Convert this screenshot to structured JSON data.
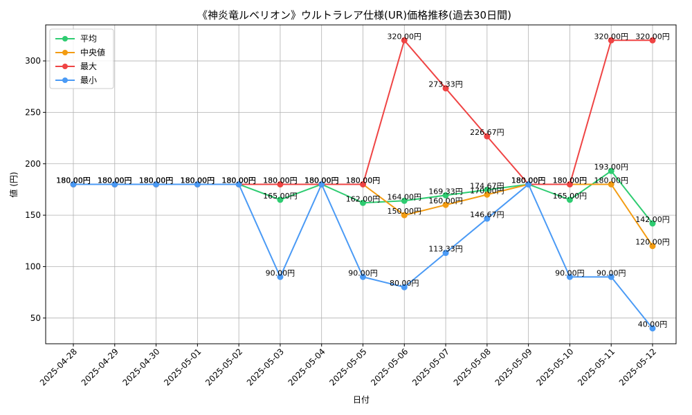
{
  "chart_data": {
    "type": "line",
    "title": "《神炎竜ルベリオン》ウルトラレア仕様(UR)価格推移(過去30日間)",
    "xlabel": "日付",
    "ylabel": "値 (円)",
    "ylim": [
      25,
      335
    ],
    "yticks": [
      50,
      100,
      150,
      200,
      250,
      300
    ],
    "grid": true,
    "legend_position": "top-left",
    "value_suffix": "円",
    "categories": [
      "2025-04-28",
      "2025-04-29",
      "2025-04-30",
      "2025-05-01",
      "2025-05-02",
      "2025-05-03",
      "2025-05-04",
      "2025-05-05",
      "2025-05-06",
      "2025-05-07",
      "2025-05-08",
      "2025-05-09",
      "2025-05-10",
      "2025-05-11",
      "2025-05-12"
    ],
    "series": [
      {
        "name": "平均",
        "color": "#2ecc71",
        "values": [
          180,
          180,
          180,
          180,
          180,
          165,
          180,
          162,
          164,
          169.33,
          174.67,
          180,
          165,
          193,
          142
        ]
      },
      {
        "name": "中央値",
        "color": "#f39c12",
        "values": [
          180,
          180,
          180,
          180,
          180,
          180,
          180,
          180,
          150,
          160,
          170,
          180,
          180,
          180,
          120
        ]
      },
      {
        "name": "最大",
        "color": "#ef4444",
        "values": [
          180,
          180,
          180,
          180,
          180,
          180,
          180,
          180,
          320,
          273.33,
          226.67,
          180,
          180,
          320,
          320
        ]
      },
      {
        "name": "最小",
        "color": "#4a9af5",
        "values": [
          180,
          180,
          180,
          180,
          180,
          90,
          180,
          90,
          80,
          113.33,
          146.67,
          180,
          90,
          90,
          40
        ]
      }
    ]
  }
}
